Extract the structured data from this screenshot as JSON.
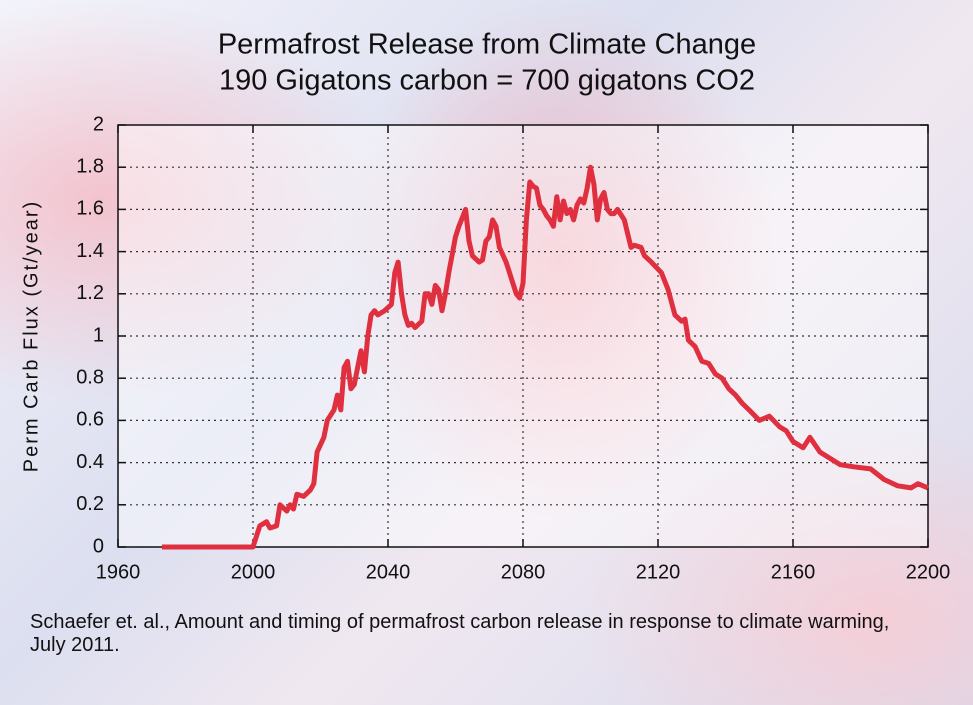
{
  "chart_data": {
    "type": "line",
    "title": [
      "Permafrost Release from Climate Change",
      "190 Gigatons carbon = 700 gigatons CO2"
    ],
    "ylabel": "Perm Carb Flux (Gt/year)",
    "source": "Schaefer et. al., Amount and timing of permafrost carbon release in response to climate warming, July 2011.",
    "xlim": [
      1960,
      2200
    ],
    "xticks": [
      1960,
      2000,
      2040,
      2080,
      2120,
      2160,
      2200
    ],
    "ylim": [
      0,
      2
    ],
    "yticks": [
      0,
      0.2,
      0.4,
      0.6,
      0.8,
      1,
      1.2,
      1.4,
      1.6,
      1.8,
      2
    ],
    "grid": true,
    "series": [
      {
        "color": "#e0303f",
        "x": [
          1973,
          2000,
          2002,
          2004,
          2005,
          2007,
          2008,
          2010,
          2011,
          2012,
          2013,
          2015,
          2017,
          2018,
          2019,
          2021,
          2022,
          2024,
          2025,
          2026,
          2027,
          2028,
          2029,
          2030,
          2031,
          2032,
          2033,
          2034,
          2035,
          2036,
          2037,
          2039,
          2041,
          2042,
          2043,
          2044,
          2045,
          2046,
          2047,
          2048,
          2050,
          2051,
          2052,
          2053,
          2054,
          2055,
          2056,
          2057,
          2058,
          2060,
          2061,
          2063,
          2064,
          2065,
          2067,
          2068,
          2069,
          2070,
          2071,
          2072,
          2073,
          2075,
          2076,
          2077,
          2078,
          2079,
          2080,
          2081,
          2082,
          2083,
          2084,
          2085,
          2086,
          2087,
          2088,
          2089,
          2090,
          2091,
          2092,
          2093,
          2094,
          2095,
          2096,
          2097,
          2098,
          2099,
          2100,
          2101,
          2102,
          2103,
          2104,
          2105,
          2106,
          2107,
          2108,
          2110,
          2112,
          2113,
          2115,
          2116,
          2118,
          2121,
          2123,
          2125,
          2127,
          2128,
          2129,
          2131,
          2133,
          2135,
          2137,
          2139,
          2141,
          2143,
          2145,
          2147,
          2150,
          2153,
          2156,
          2158,
          2160,
          2163,
          2165,
          2168,
          2171,
          2174,
          2178,
          2183,
          2187,
          2191,
          2195,
          2197,
          2200
        ],
        "values": [
          0,
          0,
          0.1,
          0.12,
          0.09,
          0.1,
          0.2,
          0.17,
          0.2,
          0.18,
          0.25,
          0.24,
          0.27,
          0.3,
          0.45,
          0.52,
          0.6,
          0.65,
          0.72,
          0.65,
          0.85,
          0.88,
          0.75,
          0.77,
          0.85,
          0.93,
          0.83,
          1.0,
          1.1,
          1.12,
          1.1,
          1.12,
          1.15,
          1.3,
          1.35,
          1.2,
          1.1,
          1.05,
          1.06,
          1.04,
          1.07,
          1.2,
          1.2,
          1.15,
          1.24,
          1.22,
          1.12,
          1.2,
          1.3,
          1.47,
          1.52,
          1.6,
          1.45,
          1.38,
          1.35,
          1.36,
          1.45,
          1.47,
          1.55,
          1.52,
          1.42,
          1.35,
          1.3,
          1.25,
          1.2,
          1.18,
          1.25,
          1.55,
          1.73,
          1.71,
          1.7,
          1.62,
          1.6,
          1.57,
          1.55,
          1.52,
          1.66,
          1.55,
          1.64,
          1.58,
          1.6,
          1.55,
          1.62,
          1.65,
          1.63,
          1.7,
          1.8,
          1.72,
          1.55,
          1.65,
          1.68,
          1.6,
          1.58,
          1.58,
          1.6,
          1.55,
          1.42,
          1.43,
          1.42,
          1.38,
          1.35,
          1.3,
          1.22,
          1.1,
          1.07,
          1.08,
          0.98,
          0.95,
          0.88,
          0.87,
          0.82,
          0.8,
          0.75,
          0.72,
          0.68,
          0.65,
          0.6,
          0.62,
          0.57,
          0.55,
          0.5,
          0.47,
          0.52,
          0.45,
          0.42,
          0.39,
          0.38,
          0.37,
          0.32,
          0.29,
          0.28,
          0.3,
          0.28
        ]
      }
    ]
  }
}
